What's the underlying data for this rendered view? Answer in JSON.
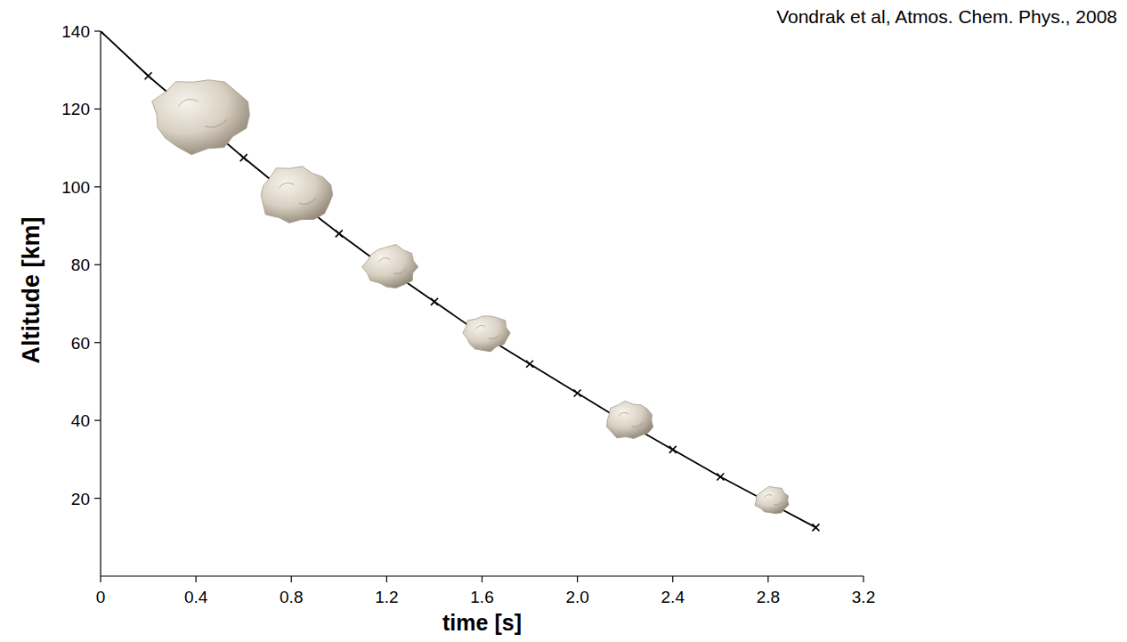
{
  "chart_data": {
    "type": "line",
    "annotations": [
      "Vondrak et al, Atmos. Chem. Phys., 2008"
    ],
    "x_label": "time [s]",
    "y_label": "Altitude [km]",
    "x": [
      0,
      0.2,
      0.4,
      0.6,
      0.8,
      1.0,
      1.2,
      1.4,
      1.6,
      1.8,
      2.0,
      2.2,
      2.4,
      2.6,
      2.8,
      3.0
    ],
    "series": [
      {
        "color": "#000000",
        "marker": "x",
        "line_style": "solid",
        "values": [
          140,
          128.5,
          118,
          107.5,
          97.5,
          88,
          79,
          70.5,
          62,
          54.5,
          47,
          39.5,
          32.5,
          25.5,
          19,
          12.5
        ]
      }
    ],
    "xlim": [
      0,
      3.2
    ],
    "xticks": [
      0,
      0.4,
      0.8,
      1.2,
      1.6,
      {
        "value": 2,
        "label": "2.0"
      },
      2.4,
      2.8,
      3.2
    ],
    "ylim": [
      0,
      140
    ],
    "yticks": [
      20,
      40,
      60,
      80,
      100,
      120,
      140
    ],
    "grid": false
  }
}
